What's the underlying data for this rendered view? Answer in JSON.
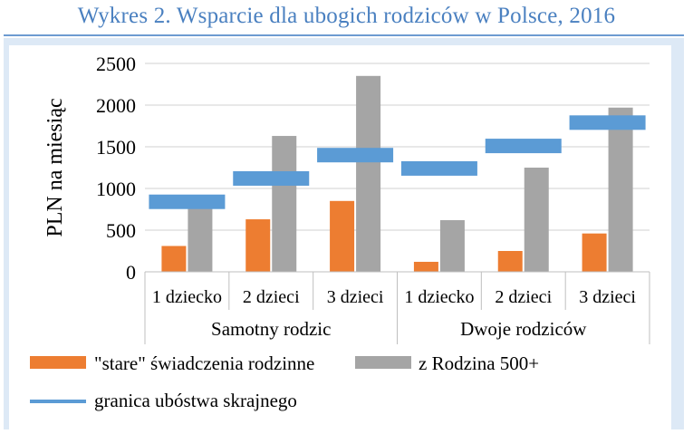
{
  "chart_data": {
    "type": "bar",
    "title": "Wykres 2. Wsparcie dla ubogich rodziców w Polsce, 2016",
    "ylabel": "PLN na miesiąc",
    "ylim": [
      0,
      2500
    ],
    "yticks": [
      0,
      500,
      1000,
      1500,
      2000,
      2500
    ],
    "grid": true,
    "legend_position": "bottom",
    "groups": [
      {
        "label": "Samotny rodzic",
        "categories": [
          "1 dziecko",
          "2 dzieci",
          "3 dzieci"
        ]
      },
      {
        "label": "Dwoje rodziców",
        "categories": [
          "1 dziecko",
          "2 dzieci",
          "3 dzieci"
        ]
      }
    ],
    "categories": [
      "1 dziecko",
      "2 dzieci",
      "3 dzieci",
      "1 dziecko",
      "2 dzieci",
      "3 dzieci"
    ],
    "series": [
      {
        "name": "\"stare\" świadczenia rodzinne",
        "kind": "bar",
        "color": "#ed7d31",
        "values": [
          310,
          630,
          850,
          120,
          250,
          460
        ]
      },
      {
        "name": "z Rodzina 500+",
        "kind": "bar",
        "color": "#a5a5a5",
        "values": [
          760,
          1630,
          2350,
          620,
          1250,
          1970
        ]
      },
      {
        "name": "granica ubóstwa skrajnego",
        "kind": "marker",
        "color": "#5b9bd5",
        "values": [
          840,
          1120,
          1400,
          1240,
          1510,
          1790
        ]
      }
    ]
  }
}
